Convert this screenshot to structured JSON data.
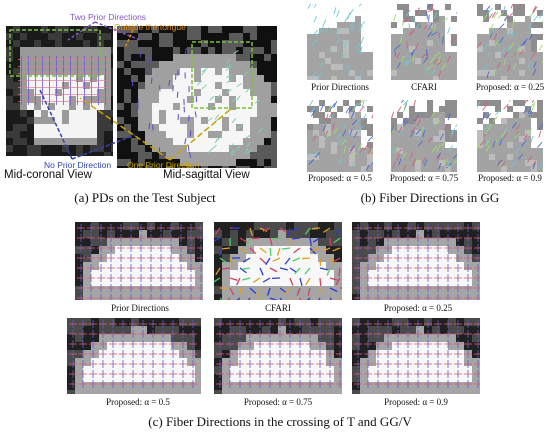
{
  "panel_a": {
    "caption": "(a) PDs on the Test Subject",
    "annotations": {
      "two_prior": "Two Prior Directions",
      "outside_tongue": "Outside the tongue",
      "no_prior": "No Prior Direction",
      "one_prior": "One Prior Direction"
    },
    "views": {
      "coronal": "Mid-coronal View",
      "sagittal": "Mid-sagittal View"
    },
    "colors": {
      "two_prior": "#8855cc",
      "outside": "#e08a1a",
      "no_prior": "#3344aa",
      "one_prior": "#c9a400"
    }
  },
  "panel_b": {
    "caption": "(b) Fiber Directions in GG",
    "subfigures": [
      {
        "label": "Prior Directions"
      },
      {
        "label": "CFARI"
      },
      {
        "label": "Proposed: α = 0.25"
      },
      {
        "label": "Proposed: α = 0.5"
      },
      {
        "label": "Proposed: α = 0.75"
      },
      {
        "label": "Proposed: α = 0.9"
      }
    ]
  },
  "panel_c": {
    "caption": "(c) Fiber Directions in the crossing of T and GG/V",
    "subfigures": [
      {
        "label": "Prior Directions"
      },
      {
        "label": "CFARI"
      },
      {
        "label": "Proposed: α = 0.25"
      },
      {
        "label": "Proposed: α = 0.5"
      },
      {
        "label": "Proposed: α = 0.75"
      },
      {
        "label": "Proposed: α = 0.9"
      }
    ]
  }
}
